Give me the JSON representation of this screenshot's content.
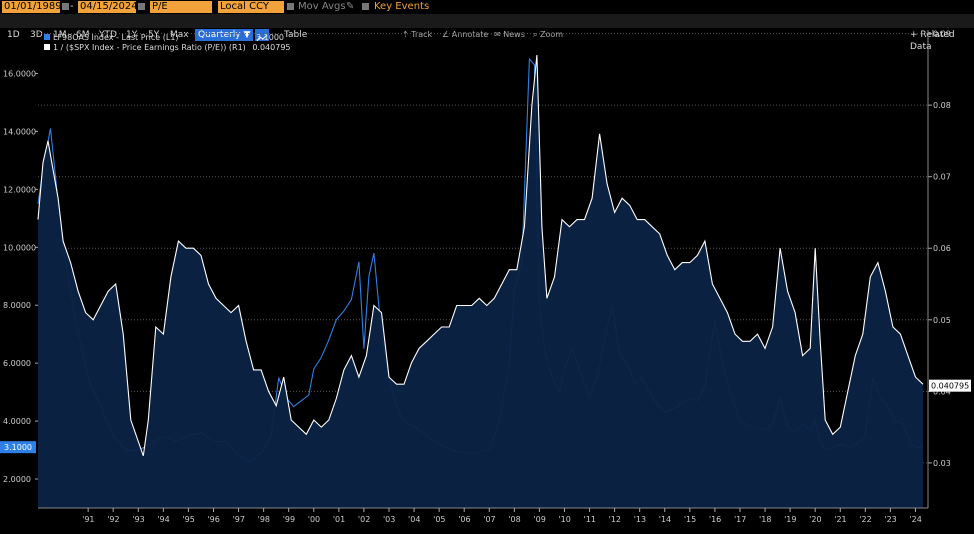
{
  "toolbar": {
    "start_date": "01/01/1989",
    "end_date": "04/15/2024",
    "field": "P/E",
    "currency": "Local CCY",
    "mov_avgs": "Mov Avgs",
    "key_events": "Key Events",
    "periods": [
      "1D",
      "3D",
      "1M",
      "6M",
      "YTD",
      "1Y",
      "5Y",
      "Max"
    ],
    "frequency": "Quarterly",
    "table": "Table",
    "related": "+ Related Data"
  },
  "tools": [
    "Track",
    "Annotate",
    "News",
    "Zoom"
  ],
  "legend": [
    {
      "label": "LF98OAS Index - Last Price (L1)",
      "value": "3.1000",
      "color": "#2f7fe8"
    },
    {
      "label": "1 / ($SPX Index - Price Earnings Ratio (P/E)) (R1)",
      "value": "0.040795",
      "color": "#ffffff"
    }
  ],
  "chart_data": {
    "type": "area",
    "x_ticks": [
      "'91",
      "'92",
      "'93",
      "'94",
      "'95",
      "'96",
      "'97",
      "'98",
      "'99",
      "'00",
      "'01",
      "'02",
      "'03",
      "'04",
      "'05",
      "'06",
      "'07",
      "'08",
      "'09",
      "'10",
      "'11",
      "'12",
      "'13",
      "'14",
      "'15",
      "'16",
      "'17",
      "'18",
      "'19",
      "'20",
      "'21",
      "'22",
      "'23",
      "'24"
    ],
    "left_axis": {
      "ticks": [
        "2.0000",
        "4.0000",
        "6.0000",
        "8.0000",
        "10.0000",
        "12.0000",
        "14.0000",
        "16.0000"
      ],
      "range": [
        1.0,
        17.5
      ]
    },
    "right_axis": {
      "ticks": [
        "0.03",
        "0.04",
        "0.05",
        "0.06",
        "0.07",
        "0.08",
        "0.09"
      ],
      "range": [
        0.0237,
        0.0905
      ]
    },
    "last_labels": {
      "left": "3.1000",
      "right": "0.040795"
    },
    "series": [
      {
        "name": "LF98OAS Index - Last Price (L1)",
        "axis": "left",
        "color": "#2f7fe8",
        "x": [
          1989.0,
          1989.25,
          1989.5,
          1989.75,
          1990.0,
          1990.5,
          1991.0,
          1991.5,
          1992.0,
          1992.5,
          1993.0,
          1993.5,
          1994.0,
          1994.5,
          1995.0,
          1995.5,
          1996.0,
          1996.5,
          1997.0,
          1997.5,
          1998.0,
          1998.3,
          1998.6,
          1998.9,
          1999.2,
          1999.5,
          1999.8,
          2000.0,
          2000.3,
          2000.6,
          2000.9,
          2001.2,
          2001.5,
          2001.8,
          2002.0,
          2002.2,
          2002.4,
          2002.7,
          2003.0,
          2003.3,
          2003.6,
          2004.0,
          2004.5,
          2005.0,
          2005.5,
          2006.0,
          2006.5,
          2007.0,
          2007.4,
          2007.8,
          2008.0,
          2008.3,
          2008.6,
          2008.8,
          2009.0,
          2009.2,
          2009.5,
          2009.8,
          2010.0,
          2010.3,
          2010.6,
          2011.0,
          2011.3,
          2011.6,
          2011.9,
          2012.2,
          2012.5,
          2012.8,
          2013.1,
          2013.5,
          2014.0,
          2014.5,
          2015.0,
          2015.3,
          2015.6,
          2016.0,
          2016.3,
          2016.6,
          2017.0,
          2017.5,
          2018.0,
          2018.3,
          2018.6,
          2018.9,
          2019.2,
          2019.5,
          2019.8,
          2020.0,
          2020.2,
          2020.4,
          2020.7,
          2021.0,
          2021.5,
          2022.0,
          2022.3,
          2022.6,
          2022.9,
          2023.2,
          2023.5,
          2023.8,
          2024.0,
          2024.3
        ],
        "values": [
          11.5,
          13.0,
          14.1,
          12.0,
          10.0,
          7.5,
          5.5,
          4.5,
          3.5,
          3.0,
          3.0,
          3.2,
          3.5,
          3.3,
          3.5,
          3.6,
          3.3,
          3.3,
          2.8,
          2.6,
          3.0,
          3.5,
          5.5,
          4.8,
          4.5,
          4.7,
          4.9,
          5.8,
          6.2,
          6.8,
          7.5,
          7.8,
          8.2,
          9.5,
          6.5,
          9.0,
          9.8,
          7.0,
          5.5,
          4.5,
          4.0,
          3.8,
          3.5,
          3.2,
          3.0,
          2.9,
          2.9,
          3.0,
          4.0,
          6.0,
          8.5,
          9.5,
          16.5,
          16.3,
          8.0,
          6.5,
          5.5,
          5.0,
          5.8,
          6.5,
          5.8,
          4.8,
          5.5,
          6.8,
          8.0,
          6.3,
          6.0,
          5.3,
          5.5,
          4.8,
          4.3,
          4.5,
          4.8,
          4.7,
          5.2,
          7.5,
          6.0,
          5.0,
          4.0,
          3.8,
          3.7,
          3.9,
          4.8,
          3.8,
          3.6,
          3.9,
          3.7,
          4.0,
          3.3,
          3.0,
          3.1,
          3.2,
          3.1,
          3.5,
          5.5,
          4.8,
          4.5,
          4.0,
          3.9,
          3.2,
          3.1,
          3.1
        ]
      },
      {
        "name": "1 / ($SPX Index - Price Earnings Ratio (P/E)) (R1)",
        "axis": "right",
        "color": "#ffffff",
        "x": [
          1989.0,
          1989.2,
          1989.4,
          1989.6,
          1989.8,
          1990.0,
          1990.3,
          1990.6,
          1990.9,
          1991.2,
          1991.5,
          1991.8,
          1992.1,
          1992.4,
          1992.7,
          1993.0,
          1993.2,
          1993.4,
          1993.7,
          1994.0,
          1994.3,
          1994.6,
          1994.9,
          1995.2,
          1995.5,
          1995.8,
          1996.1,
          1996.4,
          1996.7,
          1997.0,
          1997.3,
          1997.6,
          1997.9,
          1998.2,
          1998.5,
          1998.8,
          1999.1,
          1999.4,
          1999.7,
          2000.0,
          2000.3,
          2000.6,
          2000.9,
          2001.2,
          2001.5,
          2001.8,
          2002.1,
          2002.4,
          2002.7,
          2003.0,
          2003.3,
          2003.6,
          2003.9,
          2004.2,
          2004.5,
          2004.8,
          2005.1,
          2005.4,
          2005.7,
          2006.0,
          2006.3,
          2006.6,
          2006.9,
          2007.2,
          2007.5,
          2007.8,
          2008.1,
          2008.4,
          2008.7,
          2008.9,
          2009.1,
          2009.3,
          2009.6,
          2009.9,
          2010.2,
          2010.5,
          2010.8,
          2011.1,
          2011.4,
          2011.7,
          2012.0,
          2012.3,
          2012.6,
          2012.9,
          2013.2,
          2013.5,
          2013.8,
          2014.1,
          2014.4,
          2014.7,
          2015.0,
          2015.3,
          2015.6,
          2015.9,
          2016.2,
          2016.5,
          2016.8,
          2017.1,
          2017.4,
          2017.7,
          2018.0,
          2018.3,
          2018.6,
          2018.9,
          2019.2,
          2019.5,
          2019.8,
          2020.0,
          2020.2,
          2020.4,
          2020.7,
          2021.0,
          2021.3,
          2021.6,
          2021.9,
          2022.2,
          2022.5,
          2022.8,
          2023.1,
          2023.4,
          2023.7,
          2024.0,
          2024.3
        ],
        "values": [
          0.064,
          0.072,
          0.075,
          0.071,
          0.067,
          0.061,
          0.058,
          0.054,
          0.051,
          0.05,
          0.052,
          0.054,
          0.055,
          0.048,
          0.036,
          0.033,
          0.031,
          0.036,
          0.049,
          0.048,
          0.056,
          0.061,
          0.06,
          0.06,
          0.059,
          0.055,
          0.053,
          0.052,
          0.051,
          0.052,
          0.047,
          0.043,
          0.043,
          0.04,
          0.038,
          0.042,
          0.036,
          0.035,
          0.034,
          0.036,
          0.035,
          0.036,
          0.039,
          0.043,
          0.045,
          0.042,
          0.045,
          0.052,
          0.051,
          0.042,
          0.041,
          0.041,
          0.044,
          0.046,
          0.047,
          0.048,
          0.049,
          0.049,
          0.052,
          0.052,
          0.052,
          0.053,
          0.052,
          0.053,
          0.055,
          0.057,
          0.057,
          0.063,
          0.08,
          0.087,
          0.063,
          0.053,
          0.056,
          0.064,
          0.063,
          0.064,
          0.064,
          0.067,
          0.076,
          0.069,
          0.065,
          0.067,
          0.066,
          0.064,
          0.064,
          0.063,
          0.062,
          0.059,
          0.057,
          0.058,
          0.058,
          0.059,
          0.061,
          0.055,
          0.053,
          0.051,
          0.048,
          0.047,
          0.047,
          0.048,
          0.046,
          0.049,
          0.06,
          0.054,
          0.051,
          0.045,
          0.046,
          0.06,
          0.047,
          0.036,
          0.034,
          0.035,
          0.04,
          0.045,
          0.048,
          0.056,
          0.058,
          0.054,
          0.049,
          0.048,
          0.045,
          0.042,
          0.041
        ]
      }
    ]
  }
}
